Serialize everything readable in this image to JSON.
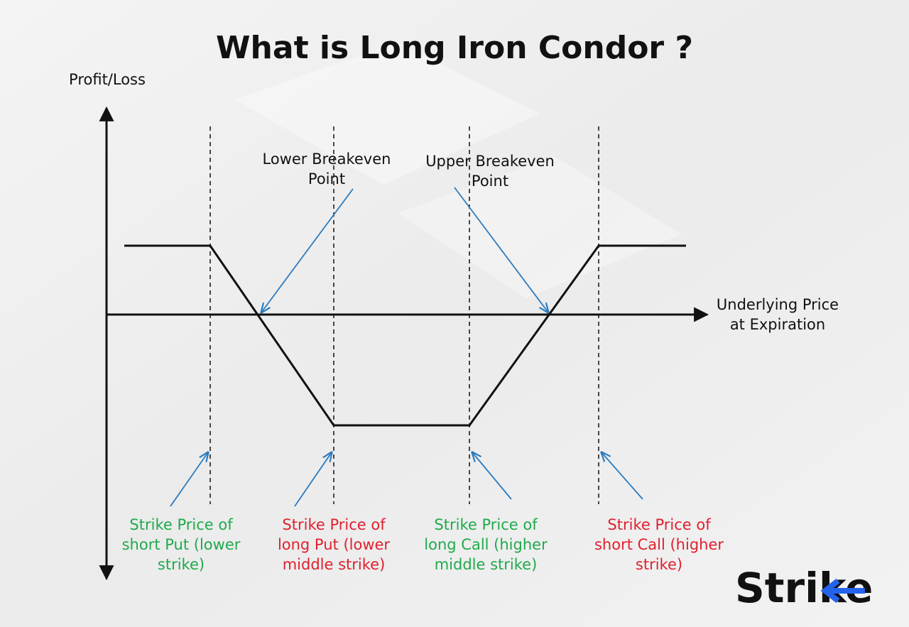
{
  "title": "What is Long Iron Condor ?",
  "y_axis_label": "Profit/Loss",
  "x_axis_label": [
    "Underlying Price",
    "at Expiration"
  ],
  "breakevens": [
    {
      "label": [
        "Lower Breakeven",
        "Point"
      ]
    },
    {
      "label": [
        "Upper Breakeven",
        "Point"
      ]
    }
  ],
  "strikes": [
    {
      "label": [
        "Strike Price of",
        "short Put (lower",
        "strike)"
      ],
      "color": "#1faa4b"
    },
    {
      "label": [
        "Strike Price of",
        "long Put (lower",
        "middle strike)"
      ],
      "color": "#e0202e"
    },
    {
      "label": [
        "Strike Price of",
        "long Call (higher",
        "middle strike)"
      ],
      "color": "#1faa4b"
    },
    {
      "label": [
        "Strike Price of",
        "short Call (higher",
        "strike)"
      ],
      "color": "#e0202e"
    }
  ],
  "logo": "Strike"
}
